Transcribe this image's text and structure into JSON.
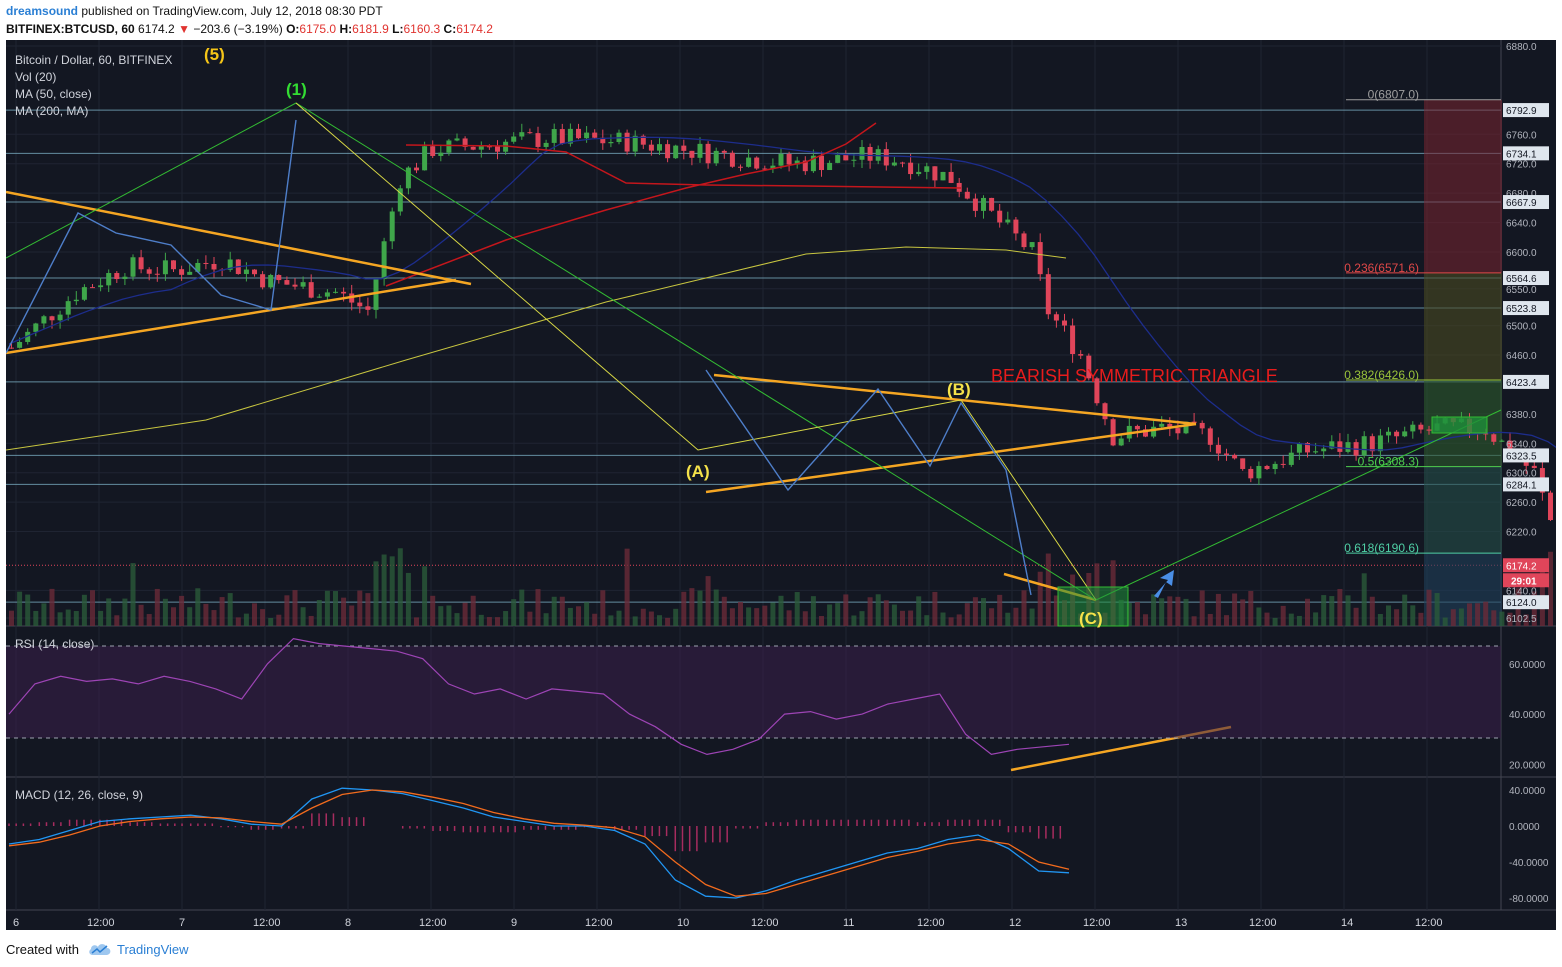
{
  "header": {
    "user": "dreamsound",
    "published": "published on TradingView.com, July 12, 2018 08:30 PDT",
    "symbol": "BITFINEX:BTCUSD, 60",
    "price": "6174.2",
    "change_arrow": "▼",
    "change": "−203.6 (−3.19%)",
    "o_label": "O:",
    "o": "6175.0",
    "h_label": "H:",
    "h": "6181.9",
    "l_label": "L:",
    "l": "6160.3",
    "c_label": "C:",
    "c": "6174.2"
  },
  "legend": {
    "title": "Bitcoin / Dollar, 60, BITFINEX",
    "vol": "Vol (20)",
    "ma50": "MA (50, close)",
    "ma200": "MA (200, MA)",
    "rsi": "RSI (14, close)",
    "macd": "MACD (12, 26, close, 9)"
  },
  "annotations": {
    "wave5": "(5)",
    "wave1": "(1)",
    "waveA": "(A)",
    "waveB": "(B)",
    "waveC": "(C)",
    "pattern": "BEARISH SYMMETRIC TRIANGLE"
  },
  "colors": {
    "bg": "#131722",
    "up": "#3fa64a",
    "down": "#e0455a",
    "ma50": "#c4161c",
    "ma200": "#1d2d8c",
    "orange": "#f5a623",
    "yellow": "#d8d845",
    "green": "#33bb33",
    "blue": "#4e7ec9",
    "rsi": "#9d44b5",
    "macd": "#2196f3",
    "signal": "#f26b1d"
  },
  "chart_data": [
    {
      "type": "candlestick",
      "title": "Bitcoin / Dollar, 60, BITFINEX",
      "ylim": [
        6090,
        6880
      ],
      "y_ticks": [
        6880,
        6760,
        6720,
        6680,
        6640,
        6600,
        6550,
        6500,
        6460,
        6380,
        6340,
        6300,
        6260,
        6220,
        6140,
        6102.5
      ],
      "x_ticks": [
        "6",
        "12:00",
        "7",
        "12:00",
        "8",
        "12:00",
        "9",
        "12:00",
        "10",
        "12:00",
        "11",
        "12:00",
        "12",
        "12:00",
        "13",
        "12:00",
        "14",
        "12:00"
      ],
      "price_levels": [
        6792.9,
        6734.1,
        6667.9,
        6564.6,
        6523.8,
        6423.4,
        6323.5,
        6284.1,
        6124.0
      ],
      "current_price": 6174.2,
      "countdown": "29:01",
      "fibonacci": [
        {
          "ratio": "0",
          "value": 6807.0,
          "label": "0(6807.0)"
        },
        {
          "ratio": "0.236",
          "value": 6571.6,
          "label": "0.236(6571.6)"
        },
        {
          "ratio": "0.382",
          "value": 6426.0,
          "label": "0.382(6426.0)"
        },
        {
          "ratio": "0.5",
          "value": 6308.3,
          "label": "0.5(6308.3)"
        },
        {
          "ratio": "0.618",
          "value": 6190.6,
          "label": "0.618(6190.6)"
        }
      ],
      "close_path": [
        [
          0,
          6470
        ],
        [
          8,
          6545
        ],
        [
          14,
          6580
        ],
        [
          20,
          6575
        ],
        [
          26,
          6590
        ],
        [
          32,
          6560
        ],
        [
          40,
          6545
        ],
        [
          44,
          6520
        ],
        [
          48,
          6700
        ],
        [
          52,
          6740
        ],
        [
          58,
          6745
        ],
        [
          66,
          6755
        ],
        [
          76,
          6750
        ],
        [
          86,
          6735
        ],
        [
          96,
          6720
        ],
        [
          102,
          6725
        ],
        [
          106,
          6730
        ],
        [
          110,
          6725
        ],
        [
          116,
          6700
        ],
        [
          120,
          6660
        ],
        [
          126,
          6600
        ],
        [
          128,
          6520
        ],
        [
          132,
          6460
        ],
        [
          136,
          6350
        ],
        [
          142,
          6360
        ],
        [
          148,
          6350
        ],
        [
          152,
          6300
        ],
        [
          160,
          6330
        ],
        [
          168,
          6340
        ],
        [
          176,
          6360
        ],
        [
          182,
          6360
        ],
        [
          186,
          6320
        ],
        [
          188,
          6300
        ],
        [
          192,
          6170
        ],
        [
          196,
          6160
        ],
        [
          200,
          6170
        ],
        [
          204,
          6175
        ]
      ]
    },
    {
      "type": "line",
      "title": "RSI (14, close)",
      "ylim": [
        15,
        75
      ],
      "y_ticks": [
        60,
        40,
        20
      ],
      "y_tick_labels": [
        "60.0000",
        "40.0000",
        "20.0000"
      ],
      "values": [
        40,
        52,
        55,
        53,
        54,
        52,
        55,
        53,
        50,
        46,
        60,
        70,
        68,
        67,
        66,
        65,
        62,
        52,
        48,
        50,
        46,
        50,
        49,
        48,
        40,
        35,
        28,
        24,
        26,
        30,
        40,
        41,
        38,
        40,
        44,
        46,
        48,
        32,
        24,
        26,
        27,
        28
      ]
    },
    {
      "type": "line",
      "title": "MACD (12, 26, close, 9)",
      "ylim": [
        -95,
        50
      ],
      "y_ticks": [
        40,
        0,
        -40,
        -80
      ],
      "y_tick_labels": [
        "40.0000",
        "0.0000",
        "-40.0000",
        "-80.0000"
      ],
      "macd": [
        -20,
        -15,
        -5,
        5,
        8,
        10,
        12,
        8,
        2,
        0,
        30,
        42,
        40,
        36,
        28,
        20,
        10,
        5,
        0,
        0,
        -5,
        -20,
        -60,
        -78,
        -80,
        -72,
        -60,
        -50,
        -40,
        -30,
        -25,
        -15,
        -10,
        -25,
        -50,
        -52
      ],
      "signal": [
        -22,
        -18,
        -10,
        0,
        5,
        8,
        10,
        9,
        5,
        2,
        20,
        35,
        40,
        38,
        32,
        25,
        15,
        8,
        3,
        1,
        -2,
        -12,
        -40,
        -65,
        -78,
        -75,
        -65,
        -55,
        -45,
        -35,
        -28,
        -20,
        -15,
        -20,
        -40,
        -48
      ]
    }
  ],
  "footer": {
    "created": "Created with",
    "brand": "TradingView"
  }
}
